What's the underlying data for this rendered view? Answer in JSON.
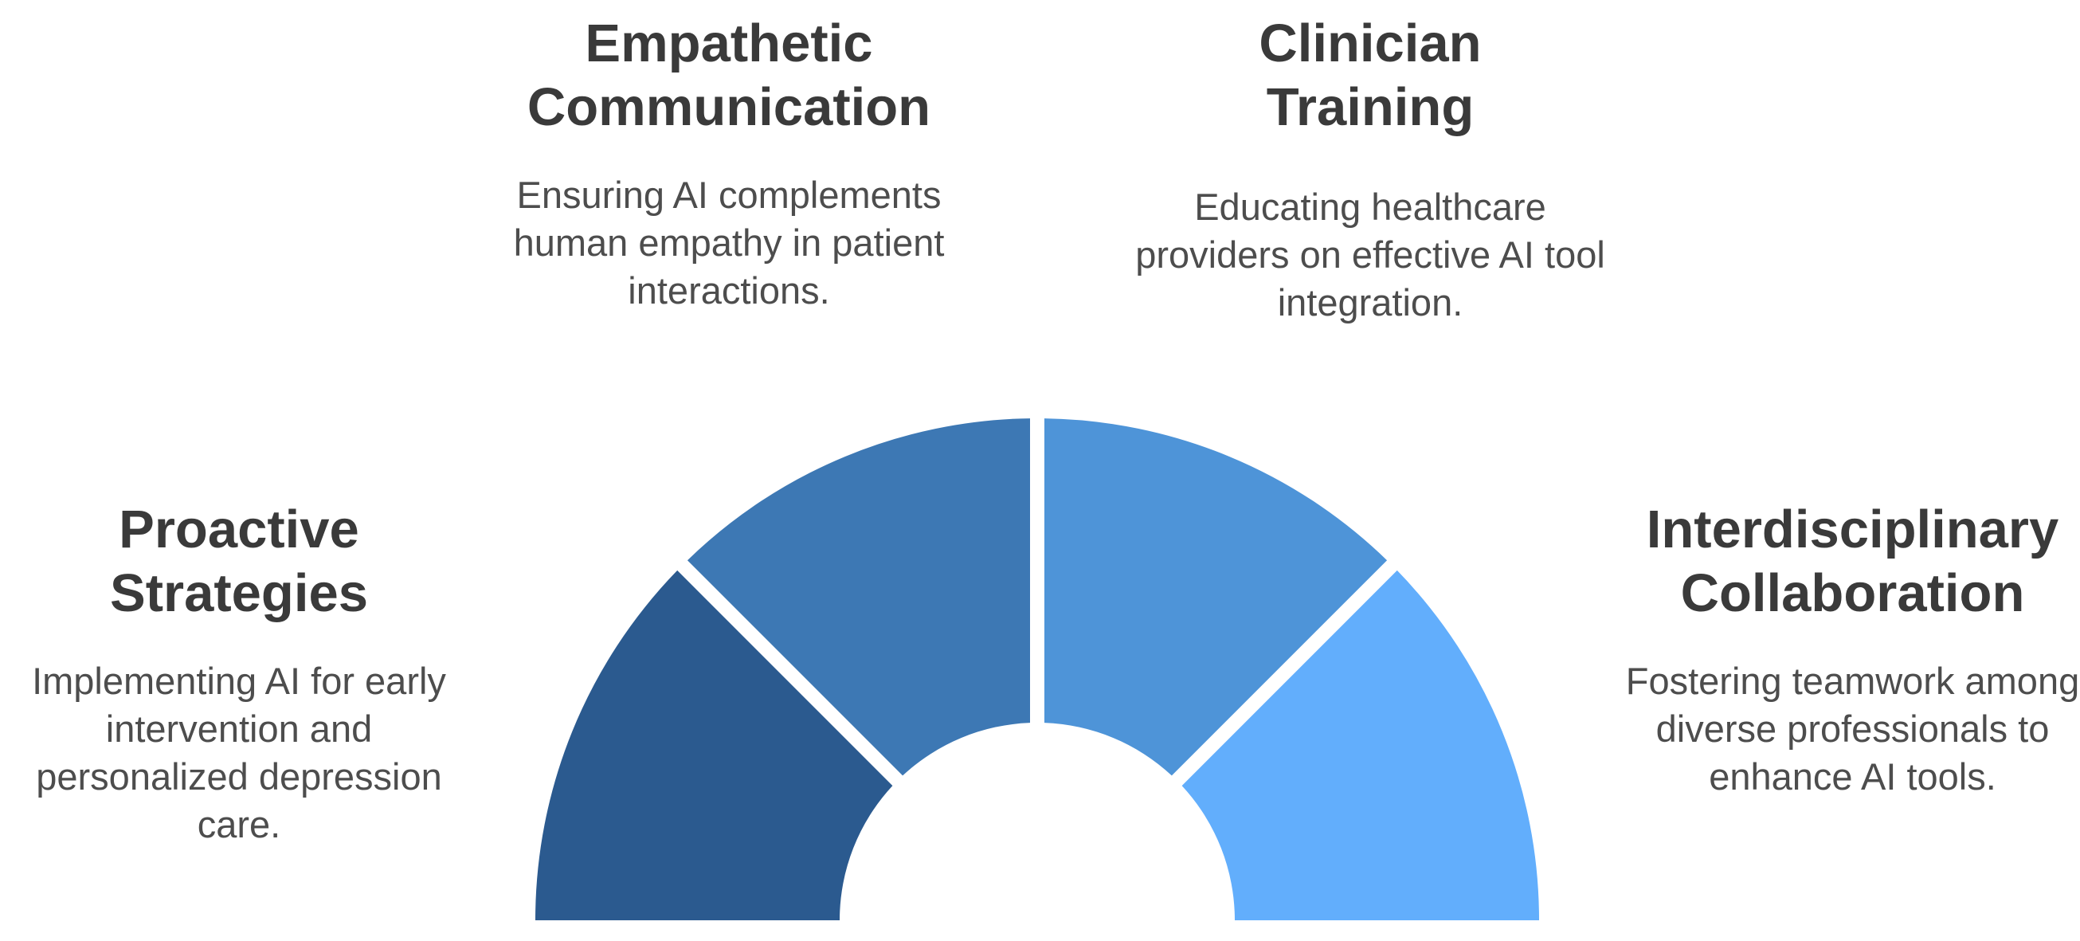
{
  "segments": [
    {
      "id": "proactive",
      "title": [
        "Proactive",
        "Strategies"
      ],
      "description": "Implementing AI for early intervention and personalized depression care.",
      "color": "#2b5a8f"
    },
    {
      "id": "empathetic",
      "title": [
        "Empathetic",
        "Communication"
      ],
      "description": "Ensuring AI complements human empathy in patient interactions.",
      "color": "#3d78b4"
    },
    {
      "id": "clinician",
      "title": [
        "Clinician",
        "Training"
      ],
      "description": "Educating healthcare providers on effective AI tool integration.",
      "color": "#4e94d8"
    },
    {
      "id": "interdisciplinary",
      "title": [
        "Interdisciplinary",
        "Collaboration"
      ],
      "description": "Fostering teamwork among diverse professionals to enhance AI tools.",
      "color": "#62aefc"
    }
  ]
}
